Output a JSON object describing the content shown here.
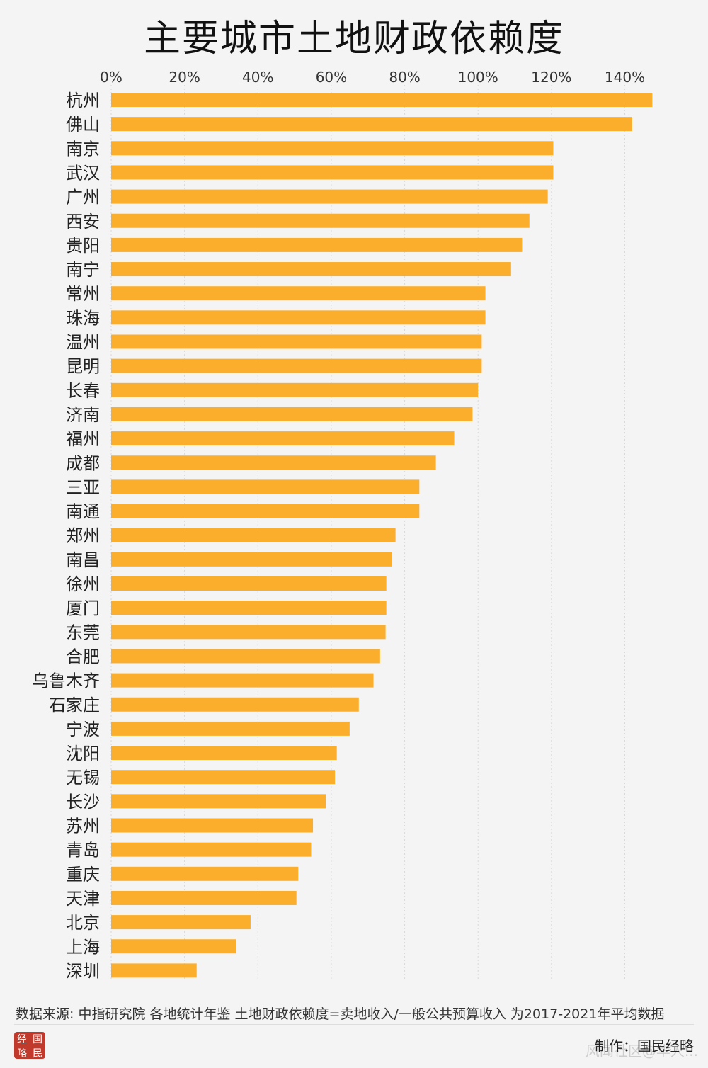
{
  "title": "主要城市土地财政依赖度",
  "footer": {
    "source_note": "数据来源: 中指研究院 各地统计年鉴  土地财政依赖度=卖地收入/一般公共预算收入 为2017-2021年平均数据",
    "credit": "制作：国民经略",
    "watermark": "风闻社区@华人...",
    "logo_chars": [
      "经",
      "国",
      "略",
      "民"
    ]
  },
  "colors": {
    "bar": "#fbae2b",
    "grid": "#d9d9d9",
    "background": "#f4f4f4"
  },
  "chart_data": {
    "type": "bar",
    "orientation": "horizontal",
    "title": "主要城市土地财政依赖度",
    "xlabel": "",
    "ylabel": "",
    "xlim": [
      0,
      150
    ],
    "x_ticks": [
      "0%",
      "20%",
      "40%",
      "60%",
      "80%",
      "100%",
      "120%",
      "140%"
    ],
    "x_tick_values": [
      0,
      20,
      40,
      60,
      80,
      100,
      120,
      140
    ],
    "categories": [
      "杭州",
      "佛山",
      "南京",
      "武汉",
      "广州",
      "西安",
      "贵阳",
      "南宁",
      "常州",
      "珠海",
      "温州",
      "昆明",
      "长春",
      "济南",
      "福州",
      "成都",
      "三亚",
      "南通",
      "郑州",
      "南昌",
      "徐州",
      "厦门",
      "东莞",
      "合肥",
      "乌鲁木齐",
      "石家庄",
      "宁波",
      "沈阳",
      "无锡",
      "长沙",
      "苏州",
      "青岛",
      "重庆",
      "天津",
      "北京",
      "上海",
      "深圳"
    ],
    "values": [
      147.5,
      142,
      120.5,
      120.5,
      119,
      114,
      112,
      109,
      102,
      102,
      101,
      101,
      100,
      98.5,
      93.5,
      88.5,
      84,
      84,
      77.5,
      76.5,
      75,
      75,
      74.8,
      73.3,
      71.5,
      67.5,
      65,
      61.5,
      61,
      58.5,
      55,
      54.5,
      51,
      50.5,
      38,
      34,
      23.3
    ],
    "unit": "%",
    "grid": true,
    "legend": "none"
  }
}
